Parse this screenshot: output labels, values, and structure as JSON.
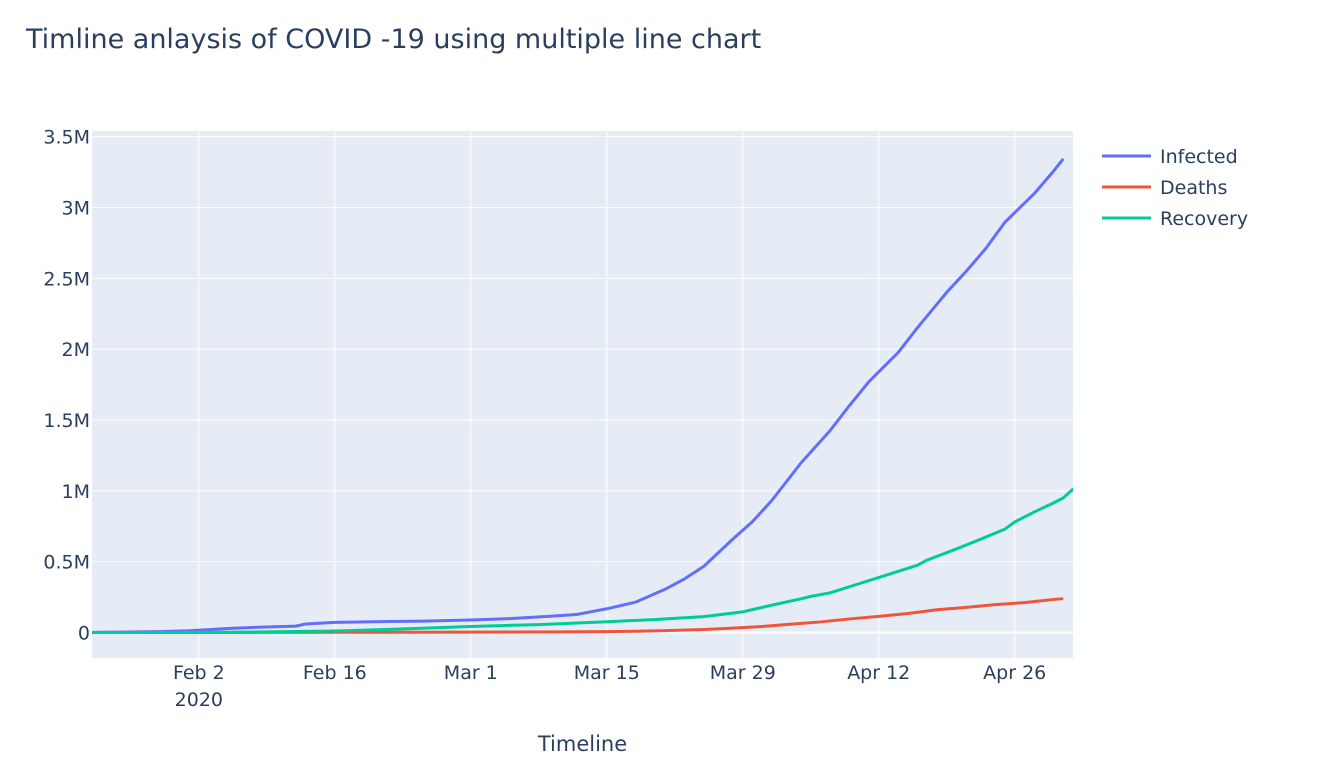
{
  "chart_data": {
    "type": "line",
    "title": "Timline anlaysis of COVID -19 using multiple line chart",
    "xlabel": "Timeline",
    "ylabel": "",
    "x_axis_type": "date",
    "xlim": [
      "2020-01-22",
      "2020-05-02"
    ],
    "ylim": [
      -180000,
      3540000
    ],
    "x_ticks": [
      {
        "date": "2020-02-02",
        "label": "Feb 2",
        "sublabel": "2020"
      },
      {
        "date": "2020-02-16",
        "label": "Feb 16",
        "sublabel": ""
      },
      {
        "date": "2020-03-01",
        "label": "Mar 1",
        "sublabel": ""
      },
      {
        "date": "2020-03-15",
        "label": "Mar 15",
        "sublabel": ""
      },
      {
        "date": "2020-03-29",
        "label": "Mar 29",
        "sublabel": ""
      },
      {
        "date": "2020-04-12",
        "label": "Apr 12",
        "sublabel": ""
      },
      {
        "date": "2020-04-26",
        "label": "Apr 26",
        "sublabel": ""
      }
    ],
    "y_ticks": [
      {
        "value": 0,
        "label": "0"
      },
      {
        "value": 500000,
        "label": "0.5M"
      },
      {
        "value": 1000000,
        "label": "1M"
      },
      {
        "value": 1500000,
        "label": "1.5M"
      },
      {
        "value": 2000000,
        "label": "2M"
      },
      {
        "value": 2500000,
        "label": "2.5M"
      },
      {
        "value": 3000000,
        "label": "3M"
      },
      {
        "value": 3500000,
        "label": "3.5M"
      }
    ],
    "grid": true,
    "legend_position": "right-top",
    "colors": {
      "background": "#E5ECF6",
      "grid": "#FFFFFF",
      "text": "#2A3F5F"
    },
    "series": [
      {
        "name": "Infected",
        "color": "#636EFA",
        "points": [
          [
            "2020-01-22",
            555
          ],
          [
            "2020-01-29",
            6165
          ],
          [
            "2020-02-01",
            12038
          ],
          [
            "2020-02-05",
            28276
          ],
          [
            "2020-02-08",
            37120
          ],
          [
            "2020-02-12",
            45171
          ],
          [
            "2020-02-13",
            60374
          ],
          [
            "2020-02-16",
            71224
          ],
          [
            "2020-02-20",
            76199
          ],
          [
            "2020-02-25",
            80415
          ],
          [
            "2020-03-01",
            88371
          ],
          [
            "2020-03-05",
            97886
          ],
          [
            "2020-03-10",
            118592
          ],
          [
            "2020-03-12",
            128343
          ],
          [
            "2020-03-15",
            167466
          ],
          [
            "2020-03-18",
            214910
          ],
          [
            "2020-03-21",
            304979
          ],
          [
            "2020-03-23",
            378231
          ],
          [
            "2020-03-25",
            467653
          ],
          [
            "2020-03-28",
            660706
          ],
          [
            "2020-03-30",
            782389
          ],
          [
            "2020-04-01",
            932605
          ],
          [
            "2020-04-04",
            1197405
          ],
          [
            "2020-04-07",
            1426096
          ],
          [
            "2020-04-09",
            1603164
          ],
          [
            "2020-04-11",
            1771514
          ],
          [
            "2020-04-14",
            1976191
          ],
          [
            "2020-04-16",
            2152437
          ],
          [
            "2020-04-19",
            2401379
          ],
          [
            "2020-04-21",
            2549123
          ],
          [
            "2020-04-23",
            2708885
          ],
          [
            "2020-04-25",
            2896746
          ],
          [
            "2020-04-28",
            3097229
          ],
          [
            "2020-04-30",
            3256846
          ],
          [
            "2020-05-01",
            3343777
          ]
        ]
      },
      {
        "name": "Deaths",
        "color": "#EF553B",
        "points": [
          [
            "2020-01-22",
            17
          ],
          [
            "2020-02-01",
            259
          ],
          [
            "2020-02-16",
            1770
          ],
          [
            "2020-03-01",
            2996
          ],
          [
            "2020-03-10",
            4262
          ],
          [
            "2020-03-15",
            6440
          ],
          [
            "2020-03-18",
            8733
          ],
          [
            "2020-03-21",
            13011
          ],
          [
            "2020-03-25",
            21181
          ],
          [
            "2020-03-28",
            30652
          ],
          [
            "2020-03-31",
            42107
          ],
          [
            "2020-04-03",
            58787
          ],
          [
            "2020-04-06",
            74565
          ],
          [
            "2020-04-09",
            95735
          ],
          [
            "2020-04-12",
            114091
          ],
          [
            "2020-04-15",
            134178
          ],
          [
            "2020-04-18",
            160755
          ],
          [
            "2020-04-21",
            177641
          ],
          [
            "2020-04-24",
            197159
          ],
          [
            "2020-04-27",
            211167
          ],
          [
            "2020-04-30",
            233388
          ],
          [
            "2020-05-01",
            238650
          ]
        ]
      },
      {
        "name": "Recovery",
        "color": "#00CC96",
        "points": [
          [
            "2020-01-22",
            28
          ],
          [
            "2020-02-01",
            284
          ],
          [
            "2020-02-08",
            3244
          ],
          [
            "2020-02-16",
            10865
          ],
          [
            "2020-02-22",
            22899
          ],
          [
            "2020-03-01",
            42716
          ],
          [
            "2020-03-08",
            55866
          ],
          [
            "2020-03-15",
            76034
          ],
          [
            "2020-03-20",
            91692
          ],
          [
            "2020-03-25",
            111750
          ],
          [
            "2020-03-29",
            145609
          ],
          [
            "2020-04-01",
            193177
          ],
          [
            "2020-04-04",
            238000
          ],
          [
            "2020-04-05",
            255000
          ],
          [
            "2020-04-07",
            280000
          ],
          [
            "2020-04-10",
            345000
          ],
          [
            "2020-04-13",
            410000
          ],
          [
            "2020-04-16",
            475000
          ],
          [
            "2020-04-17",
            512000
          ],
          [
            "2020-04-20",
            590000
          ],
          [
            "2020-04-22",
            645000
          ],
          [
            "2020-04-25",
            730000
          ],
          [
            "2020-04-26",
            780000
          ],
          [
            "2020-04-28",
            850000
          ],
          [
            "2020-04-30",
            915000
          ],
          [
            "2020-05-01",
            950000
          ],
          [
            "2020-05-02",
            1012000
          ],
          [
            "2020-05-03",
            1050000
          ]
        ]
      }
    ]
  }
}
